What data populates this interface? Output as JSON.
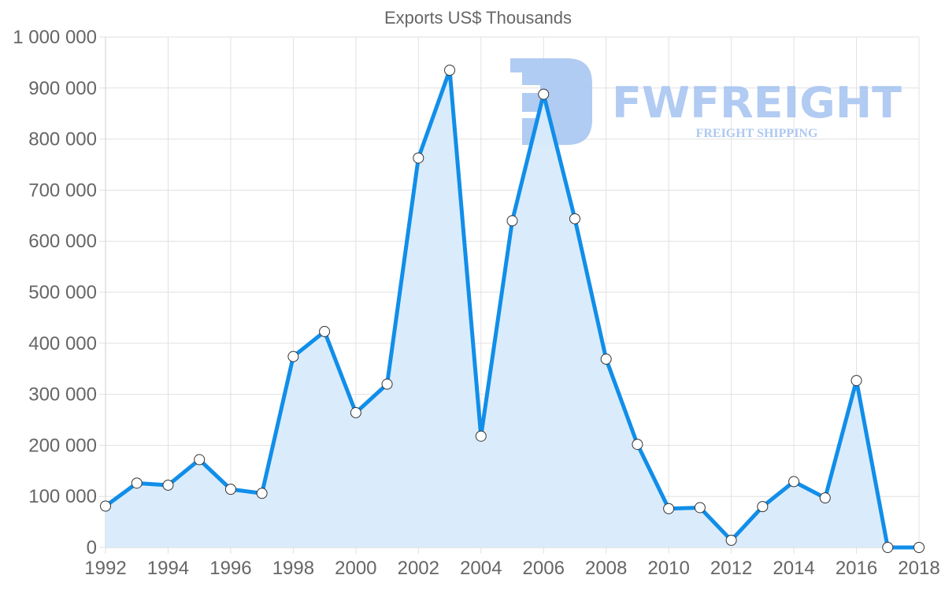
{
  "chart_data": {
    "type": "area",
    "title": "Exports US$ Thousands",
    "xlabel": "",
    "ylabel": "",
    "x": [
      1992,
      1993,
      1994,
      1995,
      1996,
      1997,
      1998,
      1999,
      2000,
      2001,
      2002,
      2003,
      2004,
      2005,
      2006,
      2007,
      2008,
      2009,
      2010,
      2011,
      2012,
      2013,
      2014,
      2015,
      2016,
      2017,
      2018
    ],
    "series": [
      {
        "name": "Exports US$ Thousands",
        "values": [
          81000,
          126000,
          122000,
          172000,
          114000,
          106000,
          374000,
          423000,
          264000,
          320000,
          763000,
          935000,
          218000,
          640000,
          888000,
          644000,
          369000,
          202000,
          76000,
          78000,
          14000,
          80000,
          129000,
          97000,
          327000,
          0,
          0
        ]
      }
    ],
    "xlim": [
      1992,
      2018
    ],
    "ylim": [
      0,
      1000000
    ],
    "x_ticks": [
      "1992",
      "1994",
      "1996",
      "1998",
      "2000",
      "2002",
      "2004",
      "2006",
      "2008",
      "2010",
      "2012",
      "2014",
      "2016",
      "2018"
    ],
    "y_ticks": [
      "0",
      "100 000",
      "200 000",
      "300 000",
      "400 000",
      "500 000",
      "600 000",
      "700 000",
      "800 000",
      "900 000",
      "1 000 000"
    ],
    "grid": true,
    "legend": "none"
  },
  "colors": {
    "line": "#118ee9",
    "fill": "#d8ebfb",
    "point_fill": "#ffffff",
    "point_stroke": "#333333",
    "watermark": "#a9c6f1"
  },
  "watermark": {
    "brand": "FWFREIGHT",
    "tagline": "FREIGHT SHIPPING",
    "icon": "fwfreight-logo-icon"
  }
}
